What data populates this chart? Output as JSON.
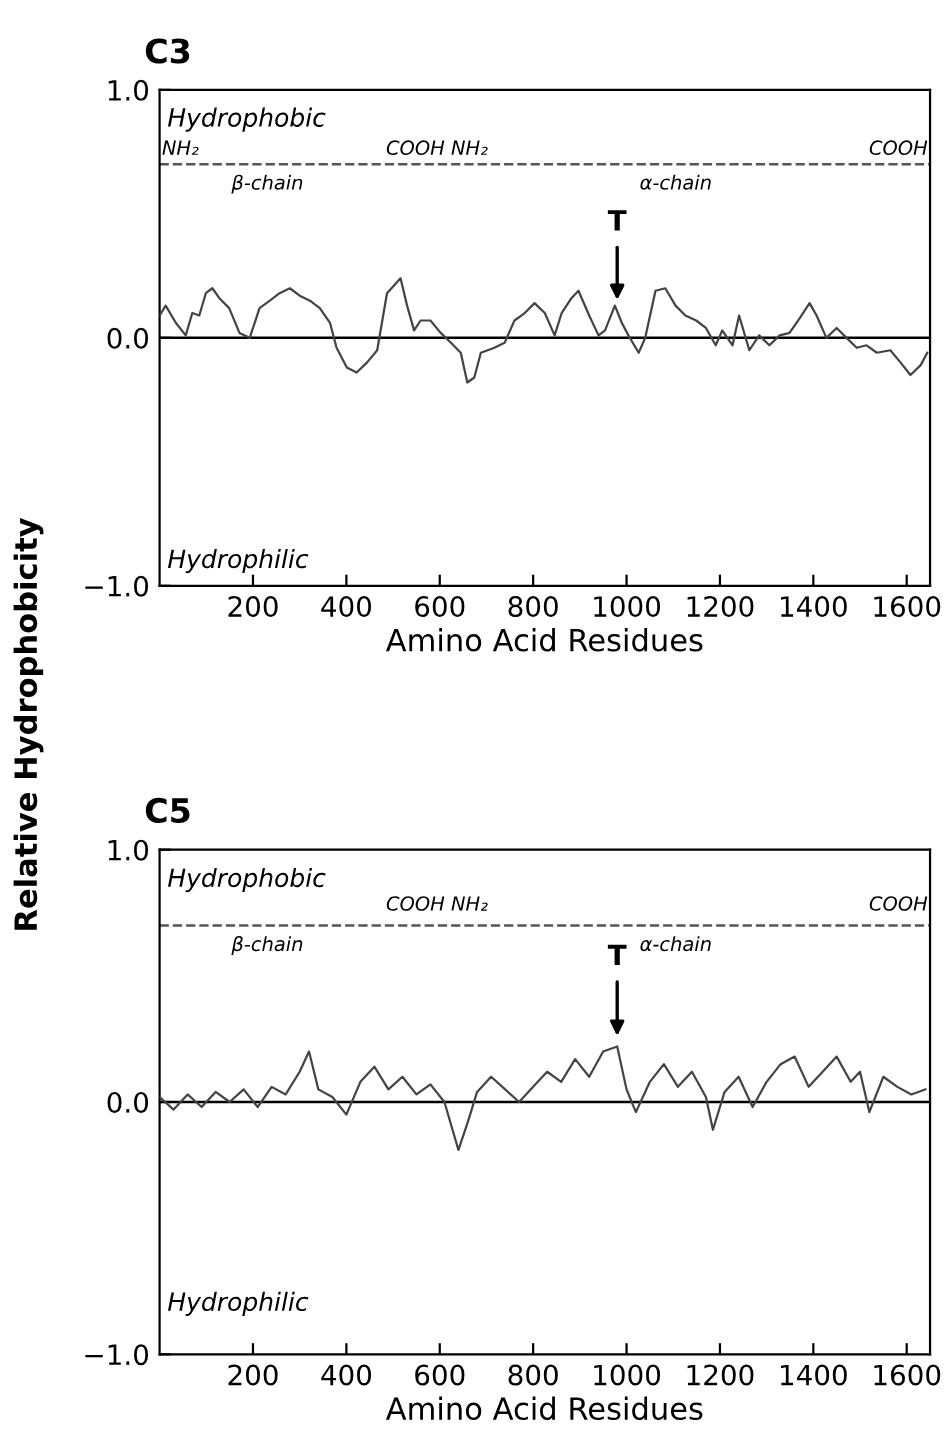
{
  "chart_data": [
    {
      "type": "line",
      "title": "C3",
      "xlabel": "Amino Acid Residues",
      "ylabel": "Relative Hydrophobicity",
      "xlim": [
        0,
        1650
      ],
      "xticks": [
        200,
        400,
        600,
        800,
        1000,
        1200,
        1400,
        1600
      ],
      "ylim": [
        -1.0,
        1.0
      ],
      "yticks": [
        {
          "value": 1.0,
          "label": "1.0"
        },
        {
          "value": 0.0,
          "label": "0.0"
        },
        {
          "value": -1.0,
          "label": "−1.0"
        }
      ],
      "ref_lines": [
        {
          "axis": "y",
          "value": 0,
          "color": "#000000"
        },
        {
          "axis": "y",
          "value": 0.7,
          "color": "#555555",
          "line_style": "dashed"
        }
      ],
      "series": [
        {
          "color": "#444444",
          "x": [
            0,
            13,
            35,
            56,
            70,
            85,
            99,
            113,
            128,
            149,
            171,
            193,
            214,
            236,
            257,
            279,
            300,
            322,
            343,
            365,
            379,
            401,
            422,
            444,
            466,
            487,
            516,
            530,
            545,
            559,
            580,
            602,
            624,
            645,
            659,
            674,
            688,
            717,
            739,
            760,
            782,
            803,
            825,
            846,
            861,
            882,
            897,
            920,
            940,
            954,
            975,
            990,
            1004,
            1026,
            1040,
            1062,
            1083,
            1105,
            1126,
            1149,
            1170,
            1191,
            1205,
            1227,
            1241,
            1263,
            1284,
            1306,
            1328,
            1349,
            1371,
            1392,
            1407,
            1428,
            1450,
            1471,
            1493,
            1514,
            1536,
            1565,
            1587,
            1608,
            1630,
            1644
          ],
          "values": [
            0.09,
            0.13,
            0.06,
            0.01,
            0.1,
            0.09,
            0.18,
            0.2,
            0.16,
            0.12,
            0.02,
            0.0,
            0.12,
            0.15,
            0.18,
            0.2,
            0.17,
            0.15,
            0.12,
            0.06,
            -0.04,
            -0.12,
            -0.14,
            -0.1,
            -0.05,
            0.18,
            0.24,
            0.13,
            0.03,
            0.07,
            0.07,
            0.02,
            -0.02,
            -0.06,
            -0.18,
            -0.16,
            -0.06,
            -0.04,
            -0.02,
            0.07,
            0.1,
            0.14,
            0.1,
            0.01,
            0.1,
            0.16,
            0.19,
            0.09,
            0.01,
            0.03,
            0.13,
            0.06,
            0.01,
            -0.06,
            0.0,
            0.19,
            0.2,
            0.13,
            0.09,
            0.07,
            0.04,
            -0.03,
            0.03,
            -0.03,
            0.09,
            -0.05,
            0.01,
            -0.03,
            0.01,
            0.02,
            0.08,
            0.14,
            0.09,
            0.0,
            0.04,
            0.0,
            -0.04,
            -0.03,
            -0.06,
            -0.05,
            -0.1,
            -0.15,
            -0.11,
            -0.06
          ]
        }
      ],
      "annotations": [
        {
          "text": "T",
          "x": 980,
          "y": 0.13
        },
        "Hydrophobic",
        "NH₂",
        "COOH NH₂",
        "COOH",
        "β-chain",
        "α-chain",
        "Hydrophilic"
      ]
    },
    {
      "type": "line",
      "title": "C5",
      "xlabel": "Amino Acid Residues",
      "xlim": [
        0,
        1650
      ],
      "xticks": [
        200,
        400,
        600,
        800,
        1000,
        1200,
        1400,
        1600
      ],
      "ylim": [
        -1.0,
        1.0
      ],
      "yticks": [
        {
          "value": 1.0,
          "label": "1.0"
        },
        {
          "value": 0.0,
          "label": "0.0"
        },
        {
          "value": -1.0,
          "label": "−1.0"
        }
      ],
      "ref_lines": [
        {
          "axis": "y",
          "value": 0,
          "color": "#000000"
        },
        {
          "axis": "y",
          "value": 0.7,
          "color": "#555555",
          "line_style": "dashed"
        }
      ],
      "series": [
        {
          "color": "#444444",
          "x": [
            0,
            30,
            60,
            90,
            120,
            150,
            180,
            210,
            240,
            270,
            300,
            320,
            340,
            370,
            400,
            430,
            460,
            490,
            520,
            550,
            580,
            610,
            640,
            660,
            680,
            710,
            740,
            770,
            800,
            830,
            860,
            890,
            920,
            950,
            980,
            1000,
            1020,
            1050,
            1080,
            1110,
            1140,
            1170,
            1185,
            1210,
            1240,
            1270,
            1300,
            1330,
            1360,
            1390,
            1420,
            1450,
            1480,
            1500,
            1520,
            1550,
            1580,
            1610,
            1640
          ],
          "values": [
            0.02,
            -0.03,
            0.03,
            -0.02,
            0.04,
            0.0,
            0.05,
            -0.02,
            0.06,
            0.03,
            0.12,
            0.2,
            0.05,
            0.02,
            -0.05,
            0.08,
            0.14,
            0.05,
            0.1,
            0.03,
            0.07,
            0.0,
            -0.19,
            -0.08,
            0.04,
            0.1,
            0.05,
            0.0,
            0.06,
            0.12,
            0.08,
            0.17,
            0.1,
            0.2,
            0.22,
            0.05,
            -0.04,
            0.08,
            0.15,
            0.06,
            0.12,
            0.02,
            -0.11,
            0.04,
            0.1,
            -0.02,
            0.08,
            0.15,
            0.18,
            0.06,
            0.12,
            0.18,
            0.08,
            0.12,
            -0.04,
            0.1,
            0.06,
            0.03,
            0.05
          ]
        }
      ],
      "annotations": [
        {
          "text": "T",
          "x": 980,
          "y": 0.24
        },
        "Hydrophobic",
        "COOH NH₂",
        "COOH",
        "β-chain",
        "α-chain",
        "Hydrophilic"
      ]
    }
  ]
}
